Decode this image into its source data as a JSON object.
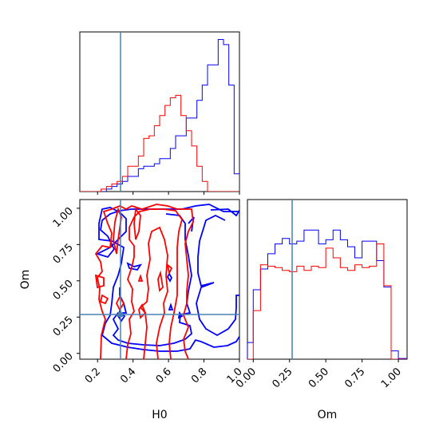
{
  "chart_data": {
    "type": "corner",
    "parameters": [
      "H0",
      "Om"
    ],
    "truth": {
      "H0": 0.34,
      "Om": 0.28
    },
    "colors": {
      "series_a": "#0000ff",
      "series_b": "#ff0000",
      "truth": "#4682b4"
    },
    "panels": {
      "H0_marginal": {
        "xlim": [
          0.1,
          1.0
        ],
        "x_ticks": [
          "0.2",
          "0.4",
          "0.6",
          "0.8",
          "1.0"
        ],
        "bin_edges": [
          0.1,
          0.13,
          0.16,
          0.19,
          0.22,
          0.25,
          0.28,
          0.31,
          0.34,
          0.37,
          0.4,
          0.43,
          0.46,
          0.49,
          0.52,
          0.55,
          0.58,
          0.61,
          0.64,
          0.67,
          0.7,
          0.73,
          0.76,
          0.79,
          0.82,
          0.85,
          0.88,
          0.91,
          0.94,
          0.97,
          1.0
        ],
        "series": [
          {
            "color": "blue",
            "counts": [
              0,
              0,
              0,
              0,
              0,
              0.5,
              1,
              1.5,
              2,
              3,
              3,
              4.5,
              5,
              5,
              5.5,
              6.5,
              6.5,
              8.5,
              11,
              11,
              14.5,
              14.5,
              18,
              21,
              25,
              25,
              30,
              29,
              21,
              3.5
            ]
          },
          {
            "color": "red",
            "counts": [
              0,
              0,
              0,
              0,
              0.5,
              1,
              1.5,
              2,
              3,
              5,
              5,
              7,
              10.5,
              11,
              13,
              15,
              17,
              18.5,
              19,
              15,
              12,
              9,
              5,
              2,
              0,
              0,
              0,
              0,
              0,
              0
            ]
          }
        ]
      },
      "Om_marginal": {
        "xlim": [
          -0.04,
          1.06
        ],
        "x_ticks": [
          "0.00",
          "0.25",
          "0.50",
          "0.75",
          "1.00"
        ],
        "bin_edges": [
          -0.04,
          0.0,
          0.05,
          0.1,
          0.15,
          0.2,
          0.25,
          0.3,
          0.35,
          0.4,
          0.45,
          0.5,
          0.55,
          0.6,
          0.65,
          0.7,
          0.75,
          0.8,
          0.85,
          0.9,
          0.95,
          1.0,
          1.06
        ],
        "series": [
          {
            "color": "blue",
            "counts": [
              1.2,
              5,
              6.5,
              7.6,
              8.3,
              8.7,
              8.3,
              8.5,
              9.3,
              9.3,
              8.3,
              8.6,
              9.3,
              8.6,
              8.1,
              7.3,
              8.5,
              8.5,
              7.1,
              5.2,
              0.6,
              0.05
            ]
          },
          {
            "color": "red",
            "counts": [
              0,
              3.5,
              6.8,
              6.7,
              6.6,
              6.4,
              6.3,
              6.7,
              6.4,
              6.7,
              6.6,
              8.0,
              7.3,
              6.6,
              6.4,
              6.8,
              6.6,
              6.7,
              8.3,
              5.3,
              0,
              0
            ]
          }
        ]
      },
      "joint": {
        "xlim": [
          0.1,
          1.0
        ],
        "ylim": [
          -0.04,
          1.06
        ],
        "x_ticks": [
          "0.2",
          "0.4",
          "0.6",
          "0.8",
          "1.0"
        ],
        "y_ticks": [
          "0.00",
          "0.25",
          "0.50",
          "0.75",
          "1.00"
        ],
        "xlabel": "H0",
        "ylabel": "Om"
      }
    },
    "om_panel_xlabel": "Om"
  }
}
